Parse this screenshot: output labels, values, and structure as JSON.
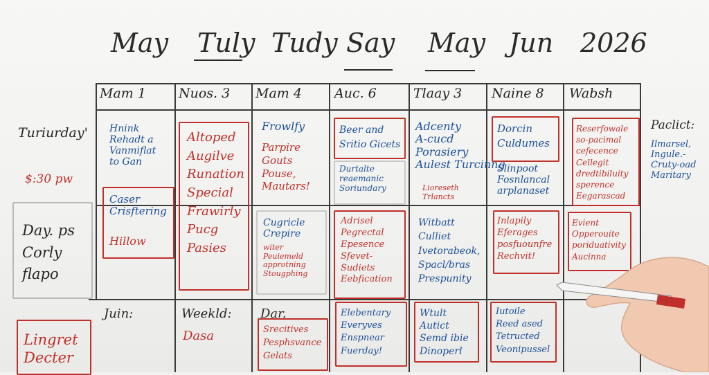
{
  "header": {
    "words": [
      "May",
      "Tuly",
      "Tudy",
      "Say",
      "May",
      "Jun",
      "2026"
    ]
  },
  "columns": [
    {
      "label": "Mam 1"
    },
    {
      "label": "Nuos. 3"
    },
    {
      "label": "Mam 4"
    },
    {
      "label": "Auc. 6"
    },
    {
      "label": "Tlaay 3"
    },
    {
      "label": "Naine 8"
    },
    {
      "label": "Wabsh"
    }
  ],
  "left": {
    "day_label": "Turiurday'",
    "time": "$:30 pw",
    "note1": "Day. ps\nCorly\nflapo",
    "note2": "Lingret\nDecter"
  },
  "right": {
    "label": "Paclict:",
    "note": "Ilmarsel,\nIngule.-\nCruty-oad\nMaritary"
  },
  "row3_labels": {
    "c1": "Juin:",
    "c2": "Weekld:",
    "c3": "Dar."
  },
  "cells": {
    "r1c1": "Hnink\nRehadt a\nVanmiflat\nto Gan",
    "r1c1b": "Caser\nCrisftering",
    "r1c1c": "Hillow",
    "r1c2": "Altoped\nAugilve\nRunation\nSpecial\nFrawirly\nPucg\nPasies",
    "r1c3": "Frowlfy",
    "r1c3b": "Parpire\nGouts\nPouse,\nMautars!",
    "r1c4": "Beer and\nSritio Gicets",
    "r1c4b": "Durtalte\nreaemanic\nSoriundary",
    "r1c5": "Adcenty\nA-cucd\nPorasiery\nAulest Turcinng",
    "r1c5b": "Lioreseth\nTrlancts",
    "r1c6": "Dorcin\nCuldumes",
    "r1c6b": "Slinpoot\nFosnlancal\narplanaset",
    "r1c7": "Reserfowale\nso-pacimal\ncefecence\nCellegit\ndredtibiluity\nsperence\nEegarascad",
    "r2c3": "Cugricle\nCrepire",
    "r2c3b": "witer\nPeuiemeld\napprotning\nStougphing",
    "r2c4": "Adrisel\nPegrectal\nEpesence\nSfevet-\nSudiets\nEebfication",
    "r2c5": "Witbatt\nCulliet\nIvetorabeok,\nSpacl/bras\nPrespunity",
    "r2c6": "Inlapily\nEferages\nposfuounfre\nRechvit!",
    "r2c7": "Evient\nOpperouite\nporiduativity\nAucinna",
    "r3c2": "Dasa",
    "r3c3": "Srecitives\nPesphsvance\nGelats",
    "r3c4": "Elebentary\nEveryves\nEnspnear\nFuerday!",
    "r3c5": "Wtult\nAutict\nSemd ibie\nDinoperl",
    "r3c6": "Iutoile\nReed ased\nTetructed\nVeonipussel"
  },
  "colors": {
    "blue_ink": "#1c4f9a",
    "red_ink": "#c0302a",
    "black_ink": "#262626"
  }
}
